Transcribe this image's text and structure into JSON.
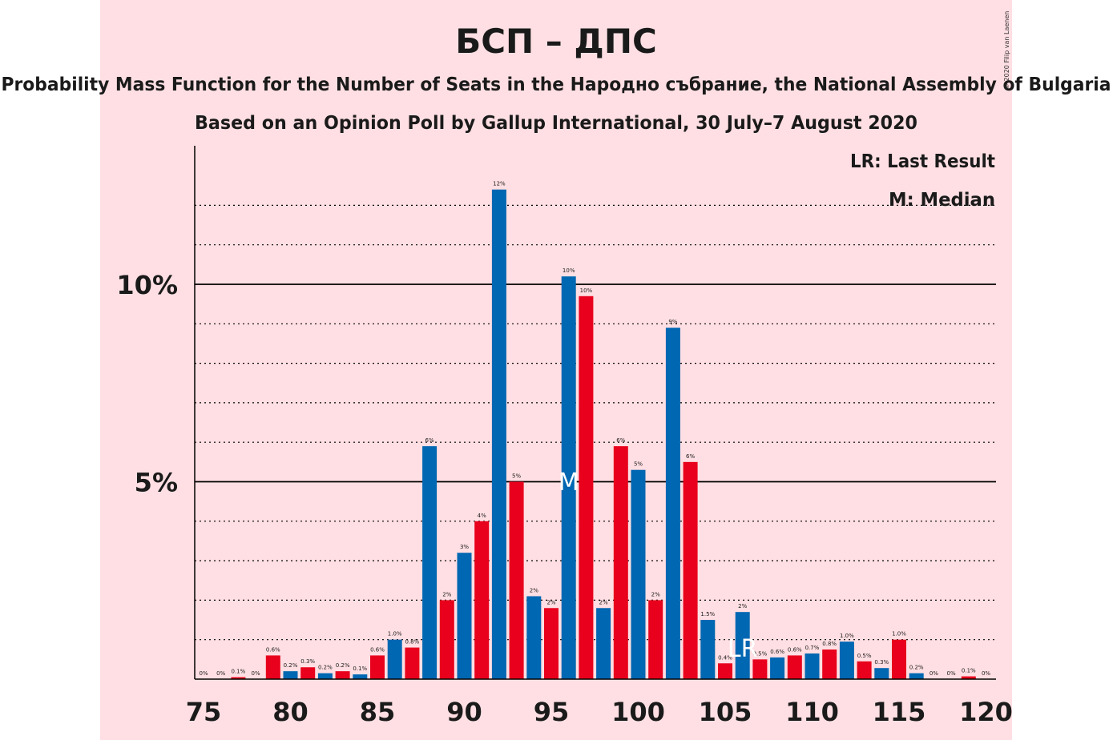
{
  "chart_data": {
    "type": "bar",
    "title": "БСП – ДПС",
    "subtitle": "Probability Mass Function for the Number of Seats in the Народно събрание, the National Assembly of Bulgaria",
    "subtitle2": "Based on an Opinion Poll by Gallup International, 30 July–7 August 2020",
    "copyright": "© 2020 Filip van Laenen",
    "legend": {
      "lr": "LR: Last Result",
      "m": "M: Median",
      "placement": "top-right"
    },
    "x": [
      75,
      76,
      77,
      78,
      79,
      80,
      81,
      82,
      83,
      84,
      85,
      86,
      87,
      88,
      89,
      90,
      91,
      92,
      93,
      94,
      95,
      96,
      97,
      98,
      99,
      100,
      101,
      102,
      103,
      104,
      105,
      106,
      107,
      108,
      109,
      110,
      111,
      112,
      113,
      114,
      115,
      116,
      117,
      118,
      119,
      120
    ],
    "values": [
      0,
      0,
      0.05,
      0,
      0.6,
      0.2,
      0.3,
      0.15,
      0.2,
      0.12,
      0.6,
      1.0,
      0.8,
      5.9,
      2.0,
      3.2,
      4.0,
      12.4,
      5.0,
      2.1,
      1.8,
      10.2,
      9.7,
      1.8,
      5.9,
      5.3,
      2.0,
      8.9,
      5.5,
      1.5,
      0.4,
      1.7,
      0.5,
      0.55,
      0.6,
      0.65,
      0.75,
      0.95,
      0.45,
      0.28,
      1.0,
      0.15,
      0,
      0,
      0.07,
      0
    ],
    "labels": [
      "0%",
      "0%",
      "0.1%",
      "0%",
      "0.6%",
      "0.2%",
      "0.3%",
      "0.2%",
      "0.2%",
      "0.1%",
      "0.6%",
      "1.0%",
      "0.8%",
      "6%",
      "2%",
      "3%",
      "4%",
      "12%",
      "5%",
      "2%",
      "2%",
      "10%",
      "10%",
      "2%",
      "6%",
      "5%",
      "2%",
      "9%",
      "6%",
      "1.5%",
      "0.4%",
      "2%",
      "0.5%",
      "0.6%",
      "0.6%",
      "0.7%",
      "0.8%",
      "1.0%",
      "0.5%",
      "0.3%",
      "1.0%",
      "0.2%",
      "0%",
      "0%",
      "0.1%",
      "0%"
    ],
    "colors": {
      "odd": "#e8001c",
      "even": "#0067b2",
      "background": "#ffdfe3",
      "axis": "#000000"
    },
    "xticks": [
      75,
      80,
      85,
      90,
      95,
      100,
      105,
      110,
      115,
      120
    ],
    "yticks": [
      {
        "value": 5,
        "label": "5%"
      },
      {
        "value": 10,
        "label": "10%"
      }
    ],
    "ylim": [
      0,
      13.5
    ],
    "median": 96,
    "median_marker": "M",
    "last_result": 106,
    "last_result_marker": "LR",
    "grid": "dotted every 1%, solid at 5% and 10%"
  }
}
